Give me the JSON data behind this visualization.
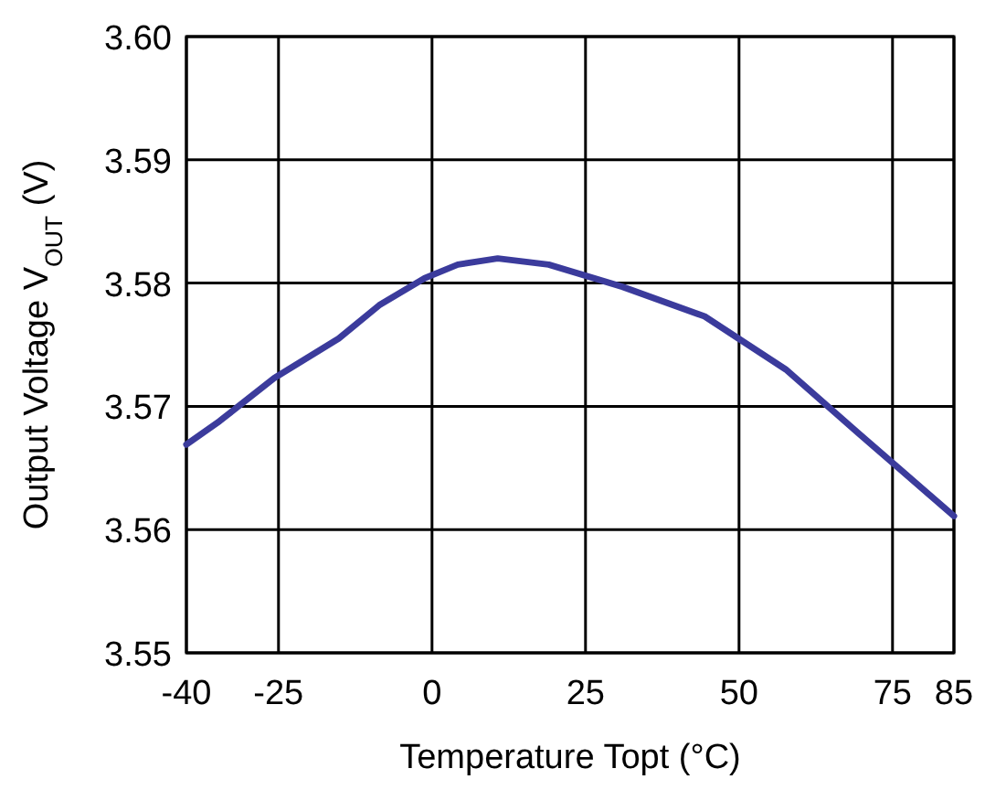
{
  "chart_data": {
    "type": "line",
    "xlabel": "Temperature Topt (°C)",
    "ylabel": "Output Voltage V$_{OUT}$ (V)",
    "x": [
      -40,
      -34.6,
      -25.7,
      -15.2,
      -8.6,
      -1.2,
      4.2,
      10.7,
      19,
      31,
      44.4,
      57.6,
      69.5,
      85
    ],
    "series": [
      {
        "color": "#3b3b9c",
        "values": [
          3.5669,
          3.5688,
          3.5723,
          3.5755,
          3.5782,
          3.5804,
          3.5815,
          3.582,
          3.5815,
          3.5797,
          3.5773,
          3.573,
          3.5678,
          3.5611
        ]
      }
    ],
    "xlim": [
      -40,
      85
    ],
    "xticks": [
      -40,
      -25,
      0,
      25,
      50,
      75,
      85
    ],
    "ylim": [
      3.55,
      3.6
    ],
    "yticks": [
      {
        "value": 3.55,
        "label": "3.55"
      },
      {
        "value": 3.56,
        "label": "3.56"
      },
      {
        "value": 3.57,
        "label": "3.57"
      },
      {
        "value": 3.58,
        "label": "3.58"
      },
      {
        "value": 3.59,
        "label": "3.59"
      },
      {
        "value": 3.6,
        "label": "3.60"
      }
    ],
    "grid": true,
    "line_style": "solid",
    "marker": "none"
  }
}
